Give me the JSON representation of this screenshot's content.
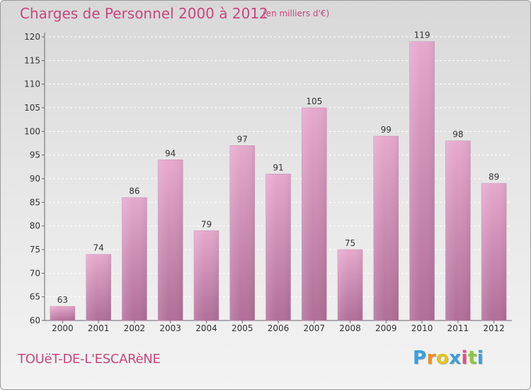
{
  "header": {
    "title": "Charges de Personnel 2000 à 2012",
    "unit": "(en milliers d'€)"
  },
  "footer": {
    "place": "TOUëT-DE-L'ESCARèNE",
    "brand_letters": [
      "P",
      "r",
      "o",
      "x",
      "i",
      "t",
      "i"
    ],
    "brand_colors": [
      "#3aa0dc",
      "#f28c1e",
      "#e6c21a",
      "#3aa0dc",
      "#e84c8a",
      "#8cc63f",
      "#3aa0dc"
    ]
  },
  "colors": {
    "bar_top": "#e6a9cd",
    "bar_bottom": "#b06e98",
    "accent": "#c8467f"
  },
  "chart_data": {
    "type": "bar",
    "title": "Charges de Personnel 2000 à 2012",
    "subtitle": "(en milliers d'€)",
    "categories": [
      "2000",
      "2001",
      "2002",
      "2003",
      "2004",
      "2005",
      "2006",
      "2007",
      "2008",
      "2009",
      "2010",
      "2011",
      "2012"
    ],
    "values": [
      63,
      74,
      86,
      94,
      79,
      97,
      91,
      105,
      75,
      99,
      119,
      98,
      89
    ],
    "ylim": [
      60,
      120
    ],
    "yticks": [
      60,
      65,
      70,
      75,
      80,
      85,
      90,
      95,
      100,
      105,
      110,
      115,
      120
    ],
    "grid": true,
    "legend": "none"
  }
}
